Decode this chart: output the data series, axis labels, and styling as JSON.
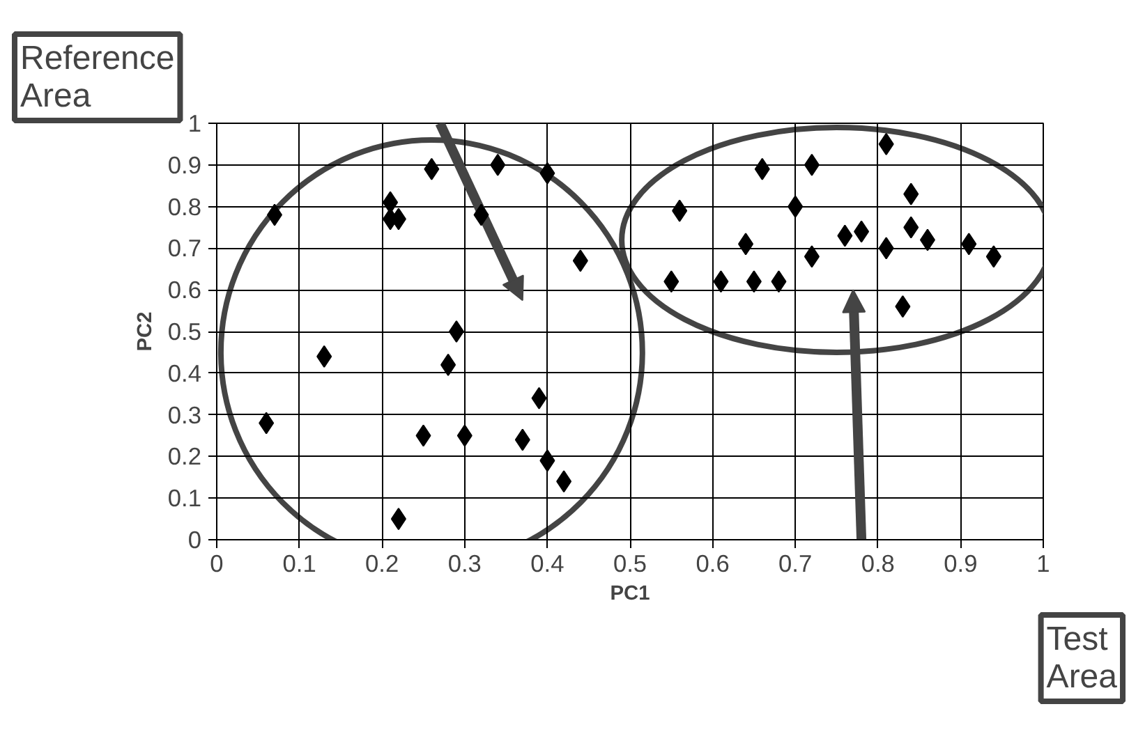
{
  "chart_data": {
    "type": "scatter",
    "xlabel": "PC1",
    "ylabel": "PC2",
    "x": [
      0.07,
      0.13,
      0.06,
      0.26,
      0.34,
      0.4,
      0.21,
      0.21,
      0.22,
      0.32,
      0.44,
      0.29,
      0.28,
      0.39,
      0.25,
      0.3,
      0.37,
      0.4,
      0.42,
      0.22,
      0.56,
      0.55,
      0.61,
      0.65,
      0.68,
      0.64,
      0.66,
      0.72,
      0.7,
      0.72,
      0.76,
      0.78,
      0.81,
      0.81,
      0.84,
      0.84,
      0.86,
      0.91,
      0.94,
      0.83
    ],
    "values": [
      0.78,
      0.44,
      0.28,
      0.89,
      0.9,
      0.88,
      0.81,
      0.77,
      0.77,
      0.78,
      0.67,
      0.5,
      0.42,
      0.34,
      0.25,
      0.25,
      0.24,
      0.19,
      0.14,
      0.05,
      0.79,
      0.62,
      0.62,
      0.62,
      0.62,
      0.71,
      0.89,
      0.9,
      0.8,
      0.68,
      0.73,
      0.74,
      0.7,
      0.95,
      0.83,
      0.75,
      0.72,
      0.71,
      0.68,
      0.56
    ],
    "color": "#000000",
    "marker": "diamond",
    "grid": true,
    "xlim": [
      0,
      1
    ],
    "ylim": [
      0,
      1
    ],
    "xticks": [
      0,
      0.1,
      0.2,
      0.3,
      0.4,
      0.5,
      0.6,
      0.7,
      0.8,
      0.9,
      1
    ],
    "yticks": [
      0,
      0.1,
      0.2,
      0.3,
      0.4,
      0.5,
      0.6,
      0.7,
      0.8,
      0.9,
      1
    ],
    "annotations": [
      "Reference Area",
      "Test Area"
    ]
  }
}
